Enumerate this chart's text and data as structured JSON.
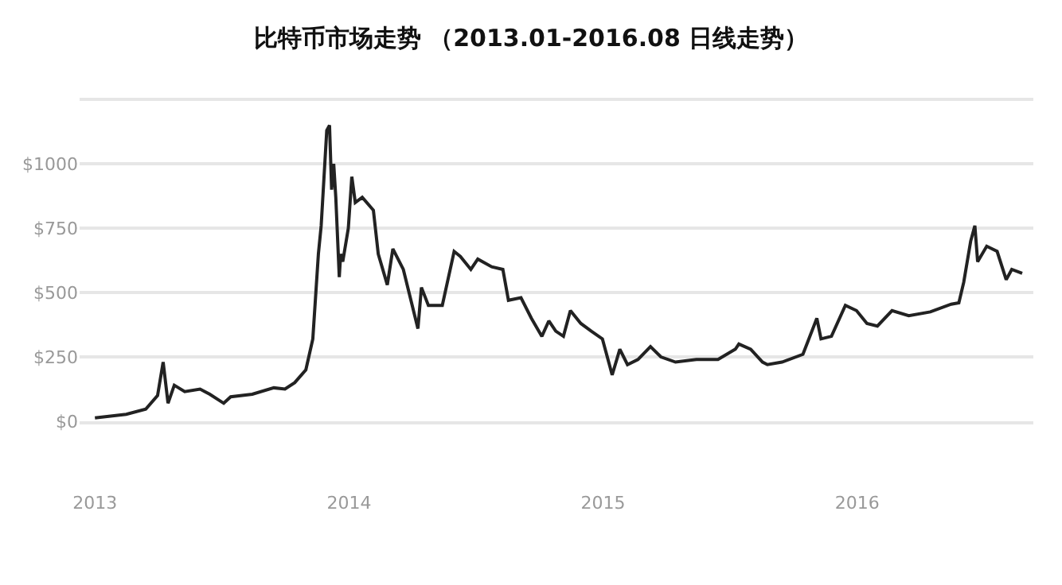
{
  "chart_data": {
    "type": "line",
    "title": "比特币市场走势 （2013.01-2016.08 日线走势）",
    "x": [
      "2013-01-01",
      "2013-02-15",
      "2013-03-15",
      "2013-04-01",
      "2013-04-09",
      "2013-04-16",
      "2013-04-25",
      "2013-05-10",
      "2013-06-01",
      "2013-06-15",
      "2013-07-05",
      "2013-07-15",
      "2013-08-15",
      "2013-09-15",
      "2013-10-01",
      "2013-10-15",
      "2013-10-31",
      "2013-11-10",
      "2013-11-18",
      "2013-11-22",
      "2013-11-30",
      "2013-12-04",
      "2013-12-07",
      "2013-12-10",
      "2013-12-13",
      "2013-12-18",
      "2013-12-20",
      "2013-12-23",
      "2013-12-31",
      "2014-01-05",
      "2014-01-10",
      "2014-01-20",
      "2014-02-05",
      "2014-02-12",
      "2014-02-25",
      "2014-03-05",
      "2014-03-20",
      "2014-04-10",
      "2014-04-15",
      "2014-04-25",
      "2014-05-15",
      "2014-06-01",
      "2014-06-10",
      "2014-06-25",
      "2014-07-05",
      "2014-07-25",
      "2014-08-10",
      "2014-08-18",
      "2014-09-05",
      "2014-09-20",
      "2014-10-05",
      "2014-10-15",
      "2014-10-25",
      "2014-11-05",
      "2014-11-15",
      "2014-11-30",
      "2014-12-15",
      "2014-12-31",
      "2015-01-14",
      "2015-01-25",
      "2015-02-05",
      "2015-02-20",
      "2015-03-10",
      "2015-03-25",
      "2015-04-15",
      "2015-05-15",
      "2015-06-15",
      "2015-07-10",
      "2015-07-15",
      "2015-08-01",
      "2015-08-18",
      "2015-08-25",
      "2015-09-15",
      "2015-10-15",
      "2015-11-04",
      "2015-11-10",
      "2015-11-25",
      "2015-12-15",
      "2015-12-31",
      "2016-01-15",
      "2016-01-30",
      "2016-02-20",
      "2016-03-15",
      "2016-04-15",
      "2016-05-15",
      "2016-05-26",
      "2016-06-02",
      "2016-06-12",
      "2016-06-18",
      "2016-06-22",
      "2016-07-05",
      "2016-07-20",
      "2016-08-02",
      "2016-08-10",
      "2016-08-25"
    ],
    "series": [
      {
        "color": "#222222",
        "values": [
          13,
          27,
          47,
          100,
          230,
          70,
          140,
          115,
          125,
          105,
          70,
          95,
          105,
          130,
          125,
          150,
          200,
          320,
          650,
          760,
          1130,
          1150,
          900,
          1000,
          870,
          560,
          650,
          620,
          750,
          950,
          850,
          870,
          820,
          650,
          530,
          670,
          590,
          360,
          520,
          450,
          450,
          660,
          640,
          590,
          630,
          600,
          590,
          470,
          480,
          400,
          330,
          390,
          350,
          330,
          430,
          380,
          350,
          320,
          180,
          280,
          220,
          240,
          290,
          250,
          230,
          240,
          240,
          280,
          300,
          280,
          230,
          220,
          230,
          260,
          400,
          320,
          330,
          450,
          430,
          380,
          370,
          430,
          410,
          425,
          455,
          460,
          540,
          700,
          760,
          620,
          680,
          660,
          550,
          590,
          575
        ]
      }
    ],
    "xlim": [
      "2012-12-10",
      "2016-09-10"
    ],
    "xticks": [
      {
        "value": "2013-01-01",
        "label": "2013"
      },
      {
        "value": "2014-01-01",
        "label": "2014"
      },
      {
        "value": "2015-01-01",
        "label": "2015"
      },
      {
        "value": "2016-01-01",
        "label": "2016"
      }
    ],
    "ylim": [
      0,
      1260
    ],
    "yticks": [
      {
        "value": 0,
        "label": "$0"
      },
      {
        "value": 250,
        "label": "$250"
      },
      {
        "value": 500,
        "label": "$500"
      },
      {
        "value": 750,
        "label": "$750"
      },
      {
        "value": 1000,
        "label": "$1000"
      },
      {
        "value": 1250,
        "label": null
      }
    ],
    "grid": "y",
    "legend": false,
    "marker": "none",
    "line_style": "solid"
  }
}
